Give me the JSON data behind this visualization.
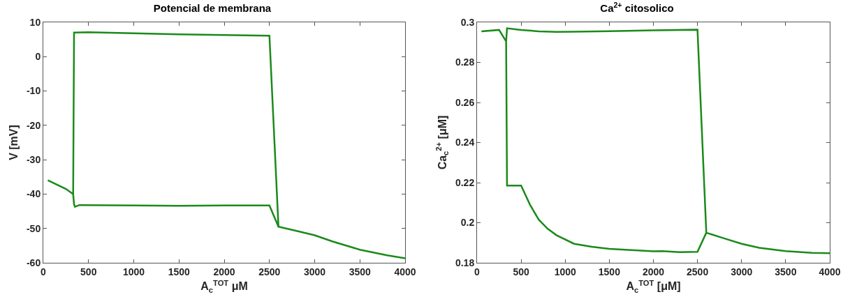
{
  "chart_data": [
    {
      "type": "line",
      "title": "Potencial de membrana",
      "xlabel": "A$_{c}$$^{TOT}$ μM",
      "ylabel": "V [mV]",
      "xlim": [
        0,
        4000
      ],
      "xticks": [
        0,
        500,
        1000,
        1500,
        2000,
        2500,
        3000,
        3500,
        4000
      ],
      "ylim": [
        -60,
        10
      ],
      "yticks": [
        -60,
        -50,
        -40,
        -30,
        -20,
        -10,
        0,
        10
      ],
      "marker": "none",
      "line_style": "solid",
      "series": [
        {
          "color": "#1a8a1a",
          "x": [
            50,
            250,
            330,
            340,
            500,
            1000,
            1500,
            2000,
            2500,
            2600,
            2800,
            3000,
            3200,
            3500,
            3800,
            4000
          ],
          "values": [
            -36,
            -38.5,
            -40,
            7,
            7.1,
            6.8,
            6.5,
            6.3,
            6.1,
            -49.5,
            -50.7,
            -52,
            -53.8,
            -56.2,
            -57.8,
            -58.7
          ]
        },
        {
          "color": "#1a8a1a",
          "x": [
            330,
            340,
            350,
            400,
            1000,
            1500,
            2000,
            2500,
            2600
          ],
          "values": [
            -40,
            -43,
            -43.7,
            -43.2,
            -43.3,
            -43.4,
            -43.3,
            -43.3,
            -49.5
          ]
        }
      ]
    },
    {
      "type": "line",
      "title": "Ca$^{2+}$ citosolico",
      "xlabel": "A$_{c}$$^{TOT}$ [μM]",
      "ylabel": "Ca$_{c}$$^{2+}$ [μM]",
      "xlim": [
        0,
        4000
      ],
      "xticks": [
        0,
        500,
        1000,
        1500,
        2000,
        2500,
        3000,
        3500,
        4000
      ],
      "ylim": [
        0.18,
        0.3
      ],
      "yticks": [
        0.18,
        0.2,
        0.22,
        0.24,
        0.26,
        0.28,
        0.3
      ],
      "marker": "none",
      "line_style": "solid",
      "series": [
        {
          "color": "#1a8a1a",
          "x": [
            50,
            250,
            330,
            340,
            500,
            700,
            900,
            1100,
            1500,
            2000,
            2500,
            2600,
            2800,
            3000,
            3200,
            3500,
            3800,
            4000
          ],
          "values": [
            0.2955,
            0.2962,
            0.2905,
            0.297,
            0.2962,
            0.2955,
            0.2952,
            0.2953,
            0.2956,
            0.296,
            0.2963,
            0.195,
            0.1922,
            0.1895,
            0.1875,
            0.1858,
            0.185,
            0.1848
          ]
        },
        {
          "color": "#1a8a1a",
          "x": [
            330,
            340,
            500,
            600,
            700,
            800,
            900,
            1100,
            1300,
            1500,
            2000,
            2100,
            2300,
            2500,
            2600
          ],
          "values": [
            0.2905,
            0.2185,
            0.2185,
            0.209,
            0.2015,
            0.197,
            0.1938,
            0.1895,
            0.188,
            0.187,
            0.1857,
            0.1858,
            0.1853,
            0.1855,
            0.195
          ]
        }
      ]
    }
  ]
}
